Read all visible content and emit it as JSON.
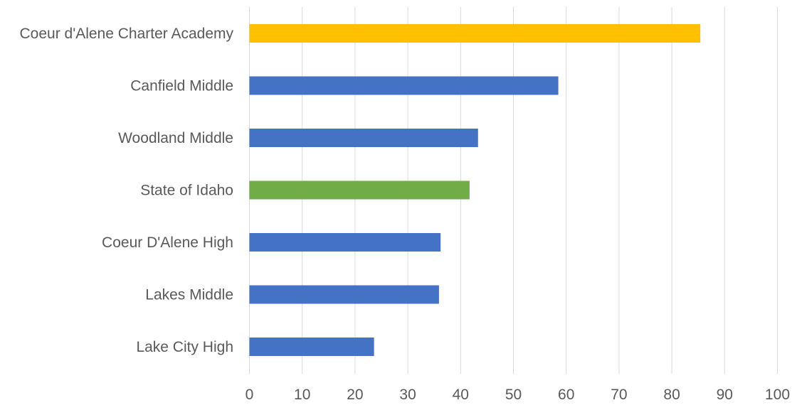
{
  "chart_data": {
    "type": "bar",
    "orientation": "horizontal",
    "categories": [
      "Coeur d'Alene Charter Academy",
      "Canfield Middle",
      "Woodland Middle",
      "State of Idaho",
      "Coeur D'Alene High",
      "Lakes Middle",
      "Lake City High"
    ],
    "values": [
      85.4,
      58.5,
      43.3,
      41.7,
      36.2,
      35.9,
      23.6
    ],
    "bar_colors": [
      "#FFC000",
      "#4472C4",
      "#4472C4",
      "#70AD47",
      "#4472C4",
      "#4472C4",
      "#4472C4"
    ],
    "xlim": [
      0,
      100
    ],
    "x_ticks": [
      0,
      10,
      20,
      30,
      40,
      50,
      60,
      70,
      80,
      90,
      100
    ],
    "grid": "vertical",
    "gridline_color": "#D9D9D9",
    "title": "",
    "xlabel": "",
    "ylabel": ""
  }
}
